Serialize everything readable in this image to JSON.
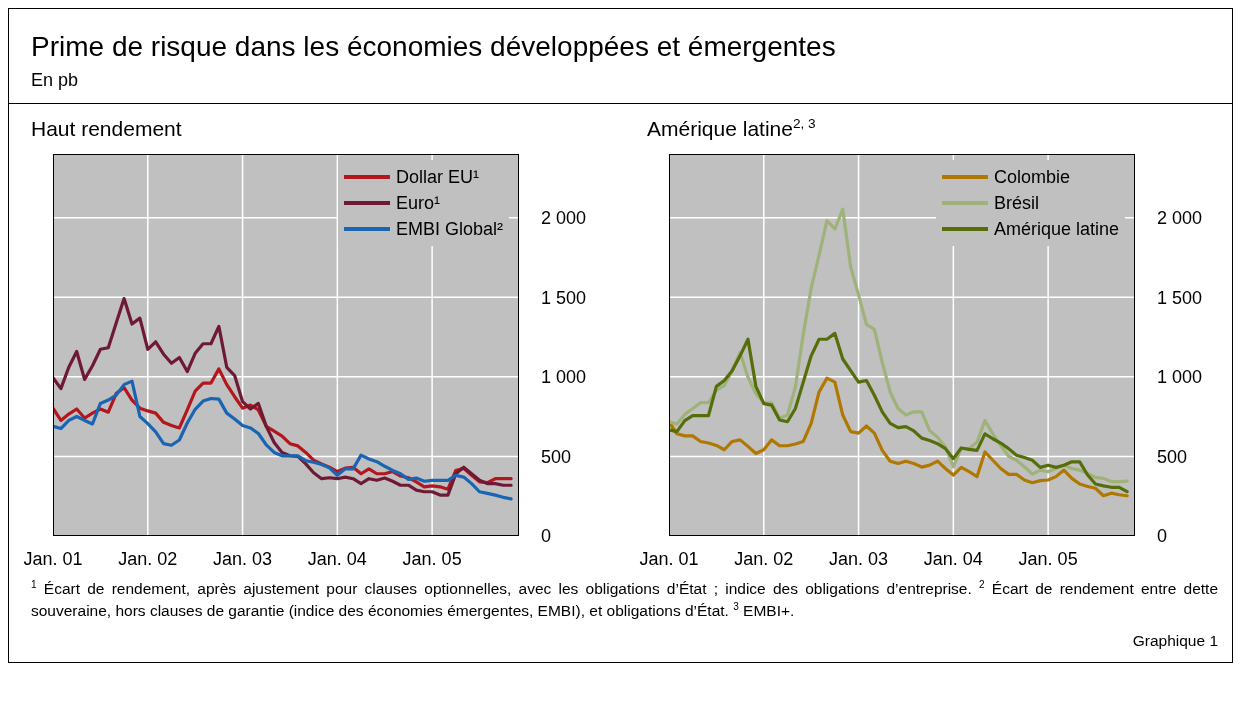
{
  "chart_data": [
    {
      "type": "line",
      "title": "Haut rendement",
      "annotations": [
        "Prime de risque dans les économies développées et émergentes",
        "En pb"
      ],
      "x": [
        "2001-01",
        "2001-02",
        "2001-03",
        "2001-04",
        "2001-05",
        "2001-06",
        "2001-07",
        "2001-08",
        "2001-09",
        "2001-10",
        "2001-11",
        "2001-12",
        "2002-01",
        "2002-02",
        "2002-03",
        "2002-04",
        "2002-05",
        "2002-06",
        "2002-07",
        "2002-08",
        "2002-09",
        "2002-10",
        "2002-11",
        "2002-12",
        "2003-01",
        "2003-02",
        "2003-03",
        "2003-04",
        "2003-05",
        "2003-06",
        "2003-07",
        "2003-08",
        "2003-09",
        "2003-10",
        "2003-11",
        "2003-12",
        "2004-01",
        "2004-02",
        "2004-03",
        "2004-04",
        "2004-05",
        "2004-06",
        "2004-07",
        "2004-08",
        "2004-09",
        "2004-10",
        "2004-11",
        "2004-12",
        "2005-01",
        "2005-02",
        "2005-03",
        "2005-04",
        "2005-05",
        "2005-06",
        "2005-07",
        "2005-08",
        "2005-09",
        "2005-10",
        "2005-11"
      ],
      "series": [
        {
          "name": "Dollar EU¹",
          "color": "#b3161c",
          "values": [
            803,
            726,
            766,
            798,
            741,
            772,
            798,
            778,
            895,
            932,
            854,
            803,
            786,
            772,
            714,
            694,
            679,
            792,
            910,
            961,
            961,
            1050,
            951,
            875,
            803,
            823,
            792,
            689,
            659,
            628,
            580,
            566,
            525,
            477,
            453,
            432,
            405,
            426,
            432,
            391,
            422,
            391,
            391,
            405,
            377,
            366,
            340,
            309,
            315,
            309,
            294,
            412,
            426,
            381,
            340,
            335,
            360,
            360,
            360
          ]
        },
        {
          "name": "Euro¹",
          "color": "#6e1a34",
          "values": [
            994,
            926,
            1060,
            1159,
            984,
            1070,
            1173,
            1183,
            1338,
            1492,
            1332,
            1369,
            1173,
            1220,
            1142,
            1085,
            1122,
            1033,
            1148,
            1208,
            1208,
            1317,
            1060,
            1008,
            844,
            798,
            833,
            689,
            587,
            525,
            504,
            500,
            453,
            397,
            360,
            366,
            360,
            370,
            360,
            329,
            360,
            350,
            364,
            344,
            319,
            319,
            288,
            278,
            278,
            257,
            257,
            391,
            432,
            391,
            350,
            329,
            329,
            319,
            319
          ]
        },
        {
          "name": "EMBI Global²",
          "color": "#1a64b4",
          "values": [
            689,
            675,
            726,
            751,
            726,
            704,
            833,
            854,
            885,
            951,
            973,
            751,
            706,
            654,
            580,
            570,
            603,
            710,
            796,
            848,
            864,
            860,
            772,
            735,
            694,
            679,
            644,
            572,
            525,
            504,
            504,
            504,
            473,
            463,
            449,
            428,
            381,
            422,
            422,
            508,
            484,
            467,
            438,
            412,
            391,
            356,
            364,
            344,
            350,
            350,
            350,
            381,
            370,
            329,
            278,
            268,
            257,
            243,
            233
          ]
        }
      ],
      "xlim": [
        "2001-01",
        "2005-12"
      ],
      "xticks": [
        {
          "value": "2001-01",
          "label": "Jan. 01"
        },
        {
          "value": "2002-01",
          "label": "Jan. 02"
        },
        {
          "value": "2003-01",
          "label": "Jan. 03"
        },
        {
          "value": "2004-01",
          "label": "Jan. 04"
        },
        {
          "value": "2005-01",
          "label": "Jan. 05"
        }
      ],
      "ylim": [
        0,
        2400
      ],
      "yticks": [
        {
          "value": 0,
          "label": "0"
        },
        {
          "value": 500,
          "label": "500"
        },
        {
          "value": 1000,
          "label": "1 000"
        },
        {
          "value": 1500,
          "label": "1 500"
        },
        {
          "value": 2000,
          "label": "2 000"
        }
      ],
      "grid": true,
      "legend": "top right",
      "marker": "none",
      "line_style": "solid"
    },
    {
      "type": "line",
      "title": "Amérique latine$^{2, 3}$",
      "annotations": [
        "$^{1}$ Écart de rendement, après ajustement pour clauses optionnelles, avec les obligations d’État ; indice des obligations d’entreprise.  $^{2}$ Écart de rendement entre dette souveraine, hors clauses de garantie (indice des économies émergentes, EMBI), et obligations d’État.  $^{3}$ EMBI+.",
        "Graphique 1"
      ],
      "x": [
        "2001-01",
        "2001-02",
        "2001-03",
        "2001-04",
        "2001-05",
        "2001-06",
        "2001-07",
        "2001-08",
        "2001-09",
        "2001-10",
        "2001-11",
        "2001-12",
        "2002-01",
        "2002-02",
        "2002-03",
        "2002-04",
        "2002-05",
        "2002-06",
        "2002-07",
        "2002-08",
        "2002-09",
        "2002-10",
        "2002-11",
        "2002-12",
        "2003-01",
        "2003-02",
        "2003-03",
        "2003-04",
        "2003-05",
        "2003-06",
        "2003-07",
        "2003-08",
        "2003-09",
        "2003-10",
        "2003-11",
        "2003-12",
        "2004-01",
        "2004-02",
        "2004-03",
        "2004-04",
        "2004-05",
        "2004-06",
        "2004-07",
        "2004-08",
        "2004-09",
        "2004-10",
        "2004-11",
        "2004-12",
        "2005-01",
        "2005-02",
        "2005-03",
        "2005-04",
        "2005-05",
        "2005-06",
        "2005-07",
        "2005-08",
        "2005-09",
        "2005-10",
        "2005-11"
      ],
      "series": [
        {
          "name": "Colombie",
          "color": "#b07800",
          "values": [
            718,
            642,
            629,
            629,
            594,
            584,
            569,
            542,
            594,
            604,
            563,
            518,
            542,
            604,
            567,
            567,
            578,
            594,
            708,
            905,
            992,
            967,
            760,
            656,
            646,
            691,
            646,
            538,
            470,
            455,
            470,
            455,
            433,
            445,
            470,
            424,
            383,
            431,
            404,
            373,
            528,
            476,
            424,
            387,
            387,
            352,
            335,
            348,
            352,
            373,
            414,
            362,
            327,
            311,
            300,
            253,
            269,
            259,
            253
          ]
        },
        {
          "name": "Brésil",
          "color": "#9fb27a",
          "values": [
            718,
            704,
            764,
            801,
            838,
            838,
            915,
            946,
            1039,
            1153,
            998,
            894,
            838,
            836,
            739,
            760,
            936,
            1267,
            1557,
            1764,
            1981,
            1929,
            2053,
            1691,
            1515,
            1329,
            1298,
            1091,
            905,
            801,
            760,
            780,
            780,
            662,
            621,
            559,
            435,
            549,
            549,
            590,
            725,
            642,
            569,
            501,
            476,
            435,
            389,
            414,
            404,
            424,
            445,
            424,
            414,
            393,
            368,
            362,
            342,
            342,
            345
          ]
        },
        {
          "name": "Amérique latine",
          "color": "#566e0a",
          "values": [
            667,
            656,
            725,
            756,
            756,
            756,
            940,
            977,
            1039,
            1132,
            1236,
            940,
            832,
            822,
            729,
            718,
            801,
            967,
            1132,
            1236,
            1236,
            1273,
            1112,
            1039,
            967,
            977,
            884,
            780,
            708,
            681,
            687,
            660,
            615,
            600,
            580,
            549,
            486,
            553,
            544,
            538,
            642,
            611,
            584,
            549,
            507,
            493,
            476,
            431,
            445,
            431,
            445,
            466,
            466,
            383,
            327,
            315,
            306,
            306,
            279
          ]
        }
      ],
      "xlim": [
        "2001-01",
        "2005-12"
      ],
      "xticks": [
        {
          "value": "2001-01",
          "label": "Jan. 01"
        },
        {
          "value": "2002-01",
          "label": "Jan. 02"
        },
        {
          "value": "2003-01",
          "label": "Jan. 03"
        },
        {
          "value": "2004-01",
          "label": "Jan. 04"
        },
        {
          "value": "2005-01",
          "label": "Jan. 05"
        }
      ],
      "ylim": [
        0,
        2400
      ],
      "yticks": [
        {
          "value": 0,
          "label": "0"
        },
        {
          "value": 500,
          "label": "500"
        },
        {
          "value": 1000,
          "label": "1 000"
        },
        {
          "value": 1500,
          "label": "1 500"
        },
        {
          "value": 2000,
          "label": "2 000"
        }
      ],
      "grid": true,
      "legend": "top right",
      "marker": "none",
      "line_style": "solid"
    }
  ]
}
